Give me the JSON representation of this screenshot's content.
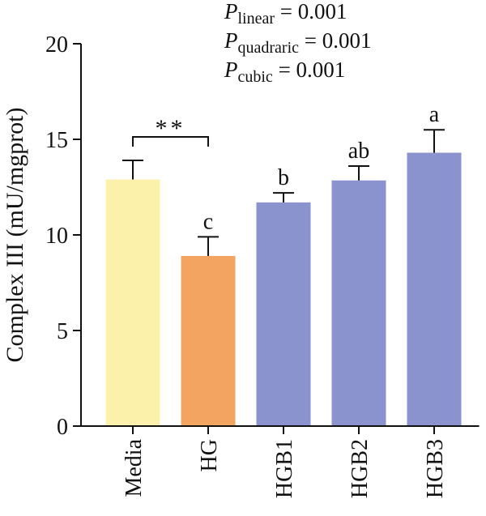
{
  "chart_data": {
    "type": "bar",
    "categories": [
      "Media",
      "HG",
      "HGB1",
      "HGB2",
      "HGB3"
    ],
    "values": [
      12.9,
      8.9,
      11.7,
      12.85,
      14.3
    ],
    "errors": [
      1.0,
      1.0,
      0.5,
      0.75,
      1.2
    ],
    "letters": [
      "",
      "c",
      "b",
      "ab",
      "a"
    ],
    "colors": [
      "#fbf1ab",
      "#f3a461",
      "#8b93cf",
      "#8b93cf",
      "#8b93cf"
    ],
    "ylabel": "Complex III (mU/mgprot)",
    "ylim": [
      0,
      20
    ],
    "yticks": [
      0,
      5,
      10,
      15,
      20
    ],
    "significance": {
      "label": "**",
      "from": 0,
      "to": 1
    },
    "pvalues": [
      {
        "name": "P",
        "sub": "linear",
        "text": " = 0.001"
      },
      {
        "name": "P",
        "sub": "quadraric",
        "text": " = 0.001"
      },
      {
        "name": "P",
        "sub": "cubic",
        "text": " = 0.001"
      }
    ]
  }
}
